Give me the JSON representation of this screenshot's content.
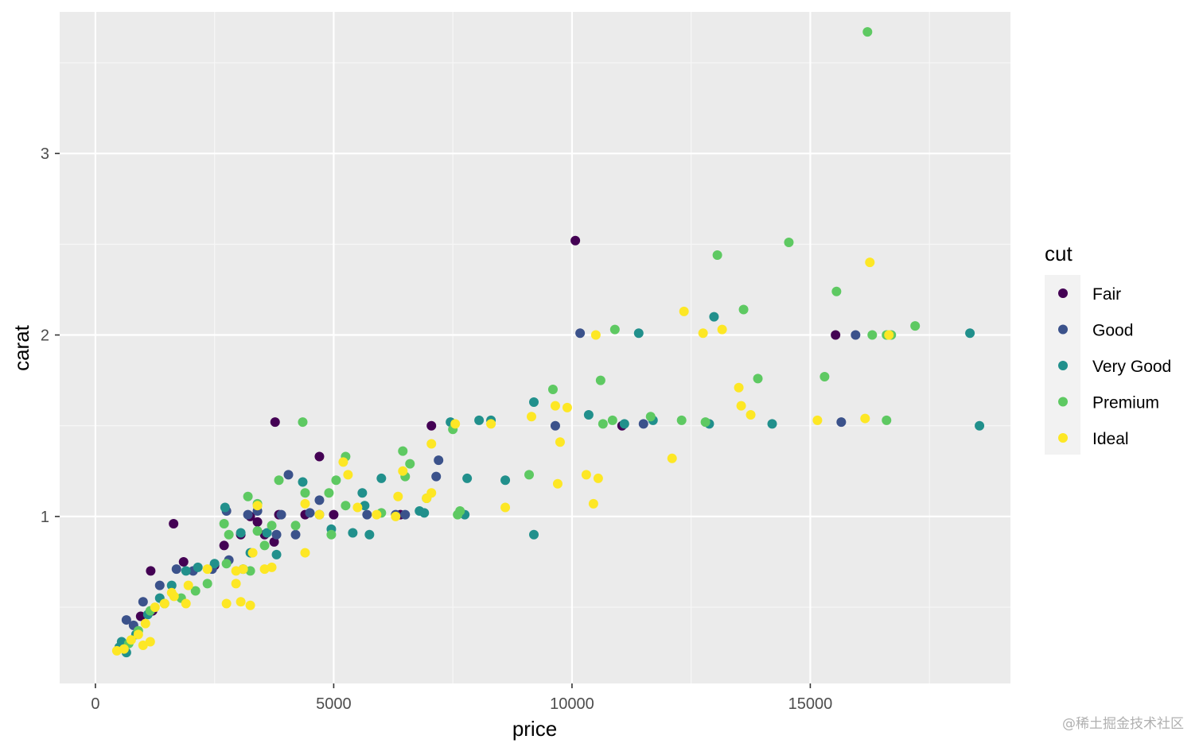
{
  "chart_data": {
    "type": "scatter",
    "title": "",
    "xlabel": "price",
    "ylabel": "carat",
    "xlim": [
      -750,
      19200
    ],
    "ylim": [
      0.08,
      3.78
    ],
    "x_ticks": [
      0,
      5000,
      10000,
      15000
    ],
    "x_tick_labels": [
      "0",
      "5000",
      "10000",
      "15000"
    ],
    "y_ticks": [
      1,
      2,
      3
    ],
    "y_tick_labels": [
      "1",
      "2",
      "3"
    ],
    "grid": true,
    "legend": {
      "title": "cut",
      "position": "right"
    },
    "series": [
      {
        "name": "Fair",
        "color": "#440154",
        "points": [
          [
            10070,
            2.52
          ],
          [
            3770,
            1.52
          ],
          [
            7050,
            1.5
          ],
          [
            4700,
            1.33
          ],
          [
            1640,
            0.96
          ],
          [
            1160,
            0.7
          ],
          [
            1850,
            0.75
          ],
          [
            2700,
            0.84
          ],
          [
            3250,
            1.0
          ],
          [
            3050,
            0.9
          ],
          [
            3550,
            0.9
          ],
          [
            3750,
            0.86
          ],
          [
            4400,
            1.01
          ],
          [
            5000,
            1.01
          ],
          [
            6400,
            1.01
          ],
          [
            11050,
            1.5
          ],
          [
            15530,
            2.0
          ],
          [
            1200,
            0.48
          ],
          [
            950,
            0.45
          ],
          [
            2500,
            0.73
          ],
          [
            3850,
            1.01
          ],
          [
            3400,
            0.97
          ]
        ]
      },
      {
        "name": "Good",
        "color": "#3b528b",
        "points": [
          [
            10170,
            2.01
          ],
          [
            15950,
            2.0
          ],
          [
            15650,
            1.52
          ],
          [
            9650,
            1.5
          ],
          [
            11500,
            1.51
          ],
          [
            7200,
            1.31
          ],
          [
            7150,
            1.22
          ],
          [
            4050,
            1.23
          ],
          [
            4700,
            1.09
          ],
          [
            2750,
            1.03
          ],
          [
            3200,
            1.01
          ],
          [
            3400,
            1.03
          ],
          [
            3800,
            0.9
          ],
          [
            4200,
            0.9
          ],
          [
            4700,
            1.01
          ],
          [
            5700,
            1.01
          ],
          [
            6500,
            1.01
          ],
          [
            1350,
            0.62
          ],
          [
            1700,
            0.71
          ],
          [
            2050,
            0.7
          ],
          [
            2450,
            0.71
          ],
          [
            2800,
            0.76
          ],
          [
            1000,
            0.53
          ],
          [
            800,
            0.4
          ],
          [
            650,
            0.43
          ],
          [
            3900,
            1.01
          ],
          [
            4500,
            1.02
          ],
          [
            6300,
            1.01
          ]
        ]
      },
      {
        "name": "Very Good",
        "color": "#21908c",
        "points": [
          [
            11400,
            2.01
          ],
          [
            12980,
            2.1
          ],
          [
            18350,
            2.01
          ],
          [
            18550,
            1.5
          ],
          [
            14200,
            1.51
          ],
          [
            12880,
            1.51
          ],
          [
            11100,
            1.51
          ],
          [
            11700,
            1.53
          ],
          [
            9200,
            1.63
          ],
          [
            8300,
            1.53
          ],
          [
            8050,
            1.53
          ],
          [
            7450,
            1.52
          ],
          [
            10350,
            1.56
          ],
          [
            7800,
            1.21
          ],
          [
            8600,
            1.2
          ],
          [
            9200,
            0.9
          ],
          [
            6000,
            1.21
          ],
          [
            5600,
            1.13
          ],
          [
            5400,
            0.91
          ],
          [
            4950,
            0.93
          ],
          [
            6800,
            1.03
          ],
          [
            7750,
            1.01
          ],
          [
            2720,
            1.05
          ],
          [
            3050,
            0.91
          ],
          [
            3250,
            0.8
          ],
          [
            3800,
            0.79
          ],
          [
            4350,
            1.19
          ],
          [
            2500,
            0.74
          ],
          [
            2150,
            0.72
          ],
          [
            1900,
            0.7
          ],
          [
            1600,
            0.62
          ],
          [
            1350,
            0.55
          ],
          [
            1100,
            0.46
          ],
          [
            850,
            0.35
          ],
          [
            650,
            0.25
          ],
          [
            500,
            0.28
          ],
          [
            550,
            0.31
          ],
          [
            3100,
            0.71
          ],
          [
            3600,
            0.91
          ],
          [
            5650,
            1.06
          ],
          [
            6900,
            1.02
          ],
          [
            5750,
            0.9
          ]
        ]
      },
      {
        "name": "Premium",
        "color": "#5ec962",
        "points": [
          [
            16200,
            3.67
          ],
          [
            14550,
            2.51
          ],
          [
            13050,
            2.44
          ],
          [
            15550,
            2.24
          ],
          [
            13600,
            2.14
          ],
          [
            10900,
            2.03
          ],
          [
            16300,
            2.0
          ],
          [
            16700,
            2.0
          ],
          [
            16600,
            2.0
          ],
          [
            17200,
            2.05
          ],
          [
            15300,
            1.77
          ],
          [
            13900,
            1.76
          ],
          [
            10600,
            1.75
          ],
          [
            9600,
            1.7
          ],
          [
            11650,
            1.55
          ],
          [
            10850,
            1.53
          ],
          [
            10650,
            1.51
          ],
          [
            12300,
            1.53
          ],
          [
            12800,
            1.52
          ],
          [
            16600,
            1.53
          ],
          [
            9100,
            1.23
          ],
          [
            7500,
            1.48
          ],
          [
            4350,
            1.52
          ],
          [
            6450,
            1.36
          ],
          [
            6600,
            1.29
          ],
          [
            5250,
            1.33
          ],
          [
            5050,
            1.2
          ],
          [
            4900,
            1.13
          ],
          [
            4400,
            1.13
          ],
          [
            3850,
            1.2
          ],
          [
            3200,
            1.11
          ],
          [
            3400,
            1.07
          ],
          [
            2700,
            0.96
          ],
          [
            3700,
            0.95
          ],
          [
            2800,
            0.9
          ],
          [
            3400,
            0.92
          ],
          [
            3550,
            0.84
          ],
          [
            4950,
            0.9
          ],
          [
            4200,
            0.95
          ],
          [
            5250,
            1.06
          ],
          [
            6500,
            1.22
          ],
          [
            6950,
            1.1
          ],
          [
            2350,
            0.63
          ],
          [
            2100,
            0.59
          ],
          [
            1800,
            0.55
          ],
          [
            1450,
            0.52
          ],
          [
            1150,
            0.48
          ],
          [
            900,
            0.37
          ],
          [
            700,
            0.3
          ],
          [
            2750,
            0.74
          ],
          [
            3250,
            0.7
          ],
          [
            7650,
            1.03
          ],
          [
            7600,
            1.01
          ],
          [
            6000,
            1.02
          ]
        ]
      },
      {
        "name": "Ideal",
        "color": "#fde725",
        "points": [
          [
            16250,
            2.4
          ],
          [
            12350,
            2.13
          ],
          [
            10500,
            2.0
          ],
          [
            12750,
            2.01
          ],
          [
            13150,
            2.03
          ],
          [
            16650,
            2.0
          ],
          [
            13500,
            1.71
          ],
          [
            13550,
            1.61
          ],
          [
            13750,
            1.56
          ],
          [
            15150,
            1.53
          ],
          [
            16150,
            1.54
          ],
          [
            12100,
            1.32
          ],
          [
            9900,
            1.6
          ],
          [
            9650,
            1.61
          ],
          [
            9150,
            1.55
          ],
          [
            9750,
            1.41
          ],
          [
            9700,
            1.18
          ],
          [
            10300,
            1.23
          ],
          [
            10550,
            1.21
          ],
          [
            10450,
            1.07
          ],
          [
            8600,
            1.05
          ],
          [
            8300,
            1.51
          ],
          [
            7550,
            1.51
          ],
          [
            7050,
            1.4
          ],
          [
            7050,
            1.13
          ],
          [
            6950,
            1.1
          ],
          [
            6350,
            1.11
          ],
          [
            6450,
            1.25
          ],
          [
            5200,
            1.3
          ],
          [
            5300,
            1.23
          ],
          [
            4700,
            1.01
          ],
          [
            4400,
            1.07
          ],
          [
            4400,
            0.8
          ],
          [
            3300,
            0.8
          ],
          [
            3400,
            1.06
          ],
          [
            3700,
            0.72
          ],
          [
            3550,
            0.71
          ],
          [
            3250,
            0.51
          ],
          [
            3050,
            0.53
          ],
          [
            2750,
            0.52
          ],
          [
            2950,
            0.63
          ],
          [
            3100,
            0.71
          ],
          [
            2950,
            0.7
          ],
          [
            2350,
            0.71
          ],
          [
            1950,
            0.62
          ],
          [
            1650,
            0.56
          ],
          [
            1450,
            0.52
          ],
          [
            1250,
            0.5
          ],
          [
            1050,
            0.41
          ],
          [
            900,
            0.35
          ],
          [
            750,
            0.32
          ],
          [
            600,
            0.27
          ],
          [
            450,
            0.26
          ],
          [
            1150,
            0.31
          ],
          [
            1000,
            0.29
          ],
          [
            1600,
            0.58
          ],
          [
            1900,
            0.52
          ],
          [
            6300,
            1.0
          ],
          [
            5900,
            1.01
          ],
          [
            5500,
            1.05
          ]
        ]
      }
    ]
  },
  "watermark": "@稀土掘金技术社区"
}
